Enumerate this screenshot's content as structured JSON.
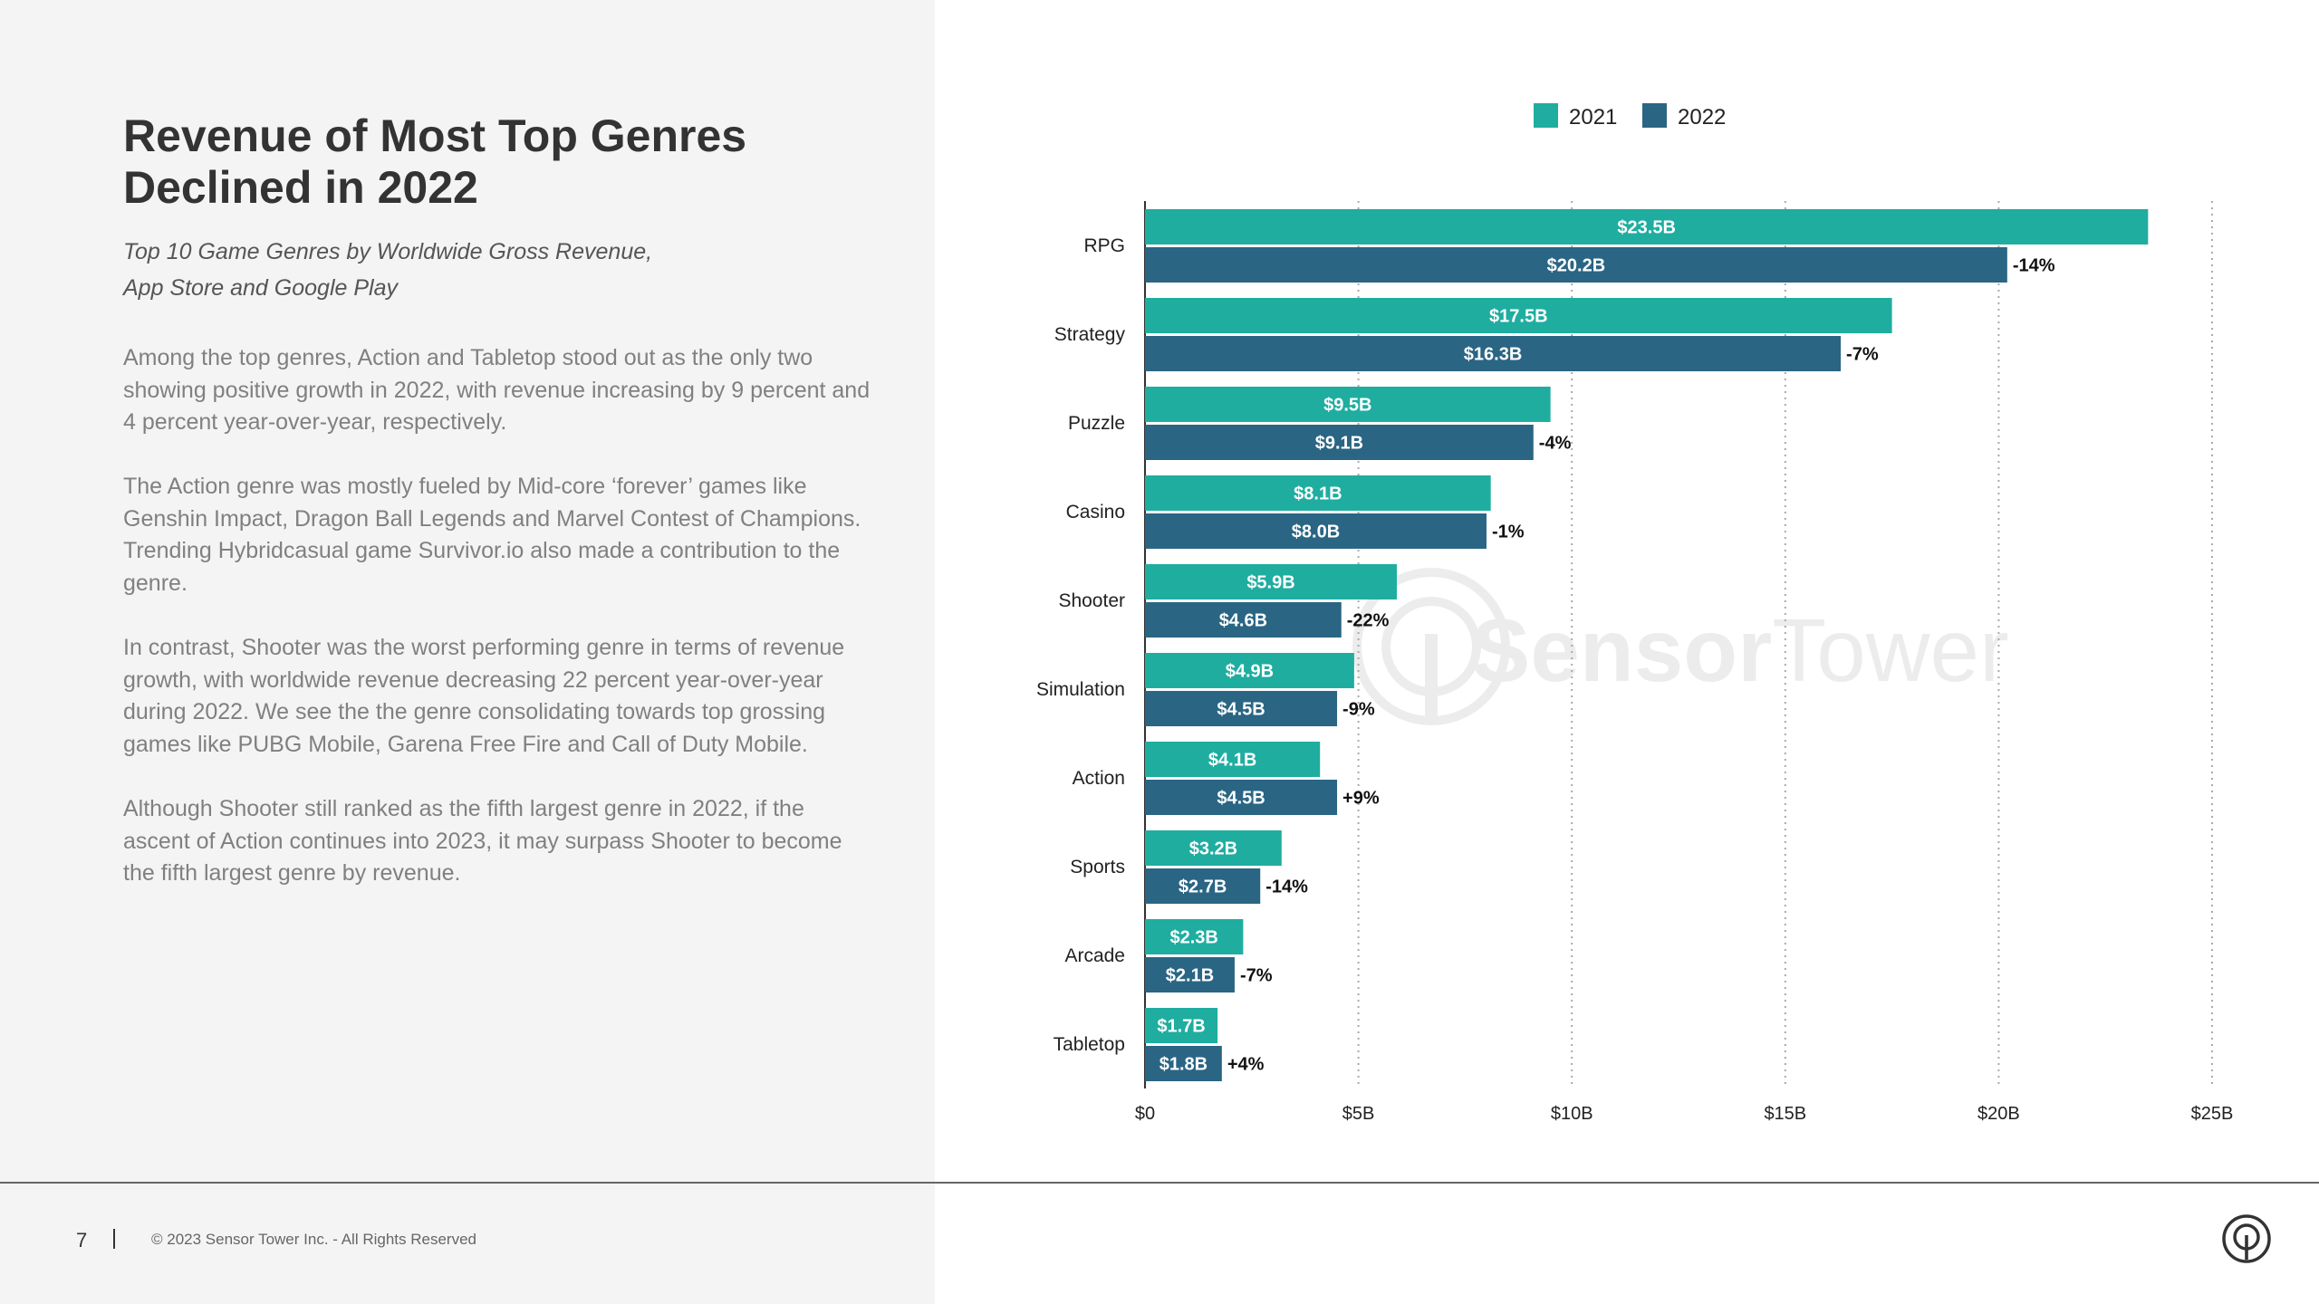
{
  "page": {
    "title": "Revenue of Most Top Genres Declined in 2022",
    "subtitle_lines": [
      "Top 10 Game Genres by Worldwide Gross Revenue,",
      "App Store and Google Play"
    ],
    "paragraphs": [
      "Among the top genres, Action and Tabletop stood out as the only two showing positive growth in 2022, with revenue increasing by 9 percent and 4 percent year-over-year, respectively.",
      "The Action genre was mostly fueled by Mid-core ‘forever’ games like Genshin Impact, Dragon Ball Legends and Marvel Contest of Champions. Trending Hybridcasual game Survivor.io also made a contribution to the genre.",
      "In contrast, Shooter was the worst performing genre in terms of revenue growth, with worldwide revenue decreasing 22 percent year-over-year during 2022. We see the the genre consolidating towards top grossing games like PUBG Mobile, Garena Free Fire and Call of Duty Mobile.",
      "Although Shooter still ranked as the fifth largest genre in 2022, if the ascent of Action continues into 2023, it may surpass Shooter to become the fifth largest genre by revenue."
    ]
  },
  "footer": {
    "page_number": "7",
    "copyright": "© 2023 Sensor Tower Inc. - All Rights Reserved"
  },
  "watermark": {
    "text_part1": "Sensor",
    "text_part2": "Tower"
  },
  "colors": {
    "series_2021": "#1fada0",
    "series_2022": "#2a6584",
    "left_panel": "#f4f4f4",
    "title": "#333333",
    "body_text": "#808080"
  },
  "icons": {
    "footer_logo": "sensor-tower-logo-icon",
    "watermark_logo": "sensor-tower-watermark-icon"
  },
  "chart_data": {
    "type": "bar",
    "orientation": "horizontal",
    "categories": [
      "RPG",
      "Strategy",
      "Puzzle",
      "Casino",
      "Shooter",
      "Simulation",
      "Action",
      "Sports",
      "Arcade",
      "Tabletop"
    ],
    "series": [
      {
        "name": "2021",
        "values": [
          23.5,
          17.5,
          9.5,
          8.1,
          5.9,
          4.9,
          4.1,
          3.2,
          2.3,
          1.7
        ],
        "labels": [
          "$23.5B",
          "$17.5B",
          "$9.5B",
          "$8.1B",
          "$5.9B",
          "$4.9B",
          "$4.1B",
          "$3.2B",
          "$2.3B",
          "$1.7B"
        ]
      },
      {
        "name": "2022",
        "values": [
          20.2,
          16.3,
          9.1,
          8.0,
          4.6,
          4.5,
          4.5,
          2.7,
          2.1,
          1.8
        ],
        "labels": [
          "$20.2B",
          "$16.3B",
          "$9.1B",
          "$8.0B",
          "$4.6B",
          "$4.5B",
          "$4.5B",
          "$2.7B",
          "$2.1B",
          "$1.8B"
        ]
      }
    ],
    "changes": [
      "-14%",
      "-7%",
      "-4%",
      "-1%",
      "-22%",
      "-9%",
      "+9%",
      "-14%",
      "-7%",
      "+4%"
    ],
    "xlim": [
      0,
      25
    ],
    "xticks": [
      0,
      5,
      10,
      15,
      20,
      25
    ],
    "xtick_labels": [
      "$0",
      "$5B",
      "$10B",
      "$15B",
      "$20B",
      "$25B"
    ],
    "unit": "USD billions",
    "legend": [
      "2021",
      "2022"
    ],
    "legend_position": "top-center",
    "grid": "vertical dotted"
  }
}
